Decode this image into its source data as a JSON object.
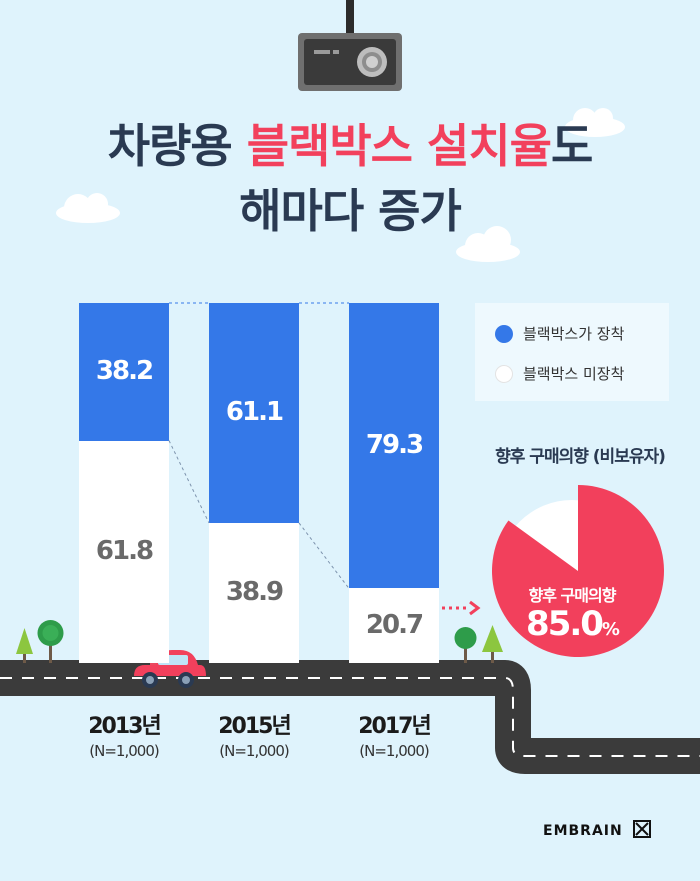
{
  "title": {
    "line1_pre": "차량용 ",
    "line1_accent": "블랙박스 설치율",
    "line1_post": "도",
    "line2": "해마다 증가"
  },
  "legend": {
    "installed": "블랙박스가 장착",
    "not_installed": "블랙박스 미장착"
  },
  "pie": {
    "title": "향후 구매의향 (비보유자)",
    "label": "향후 구매의향",
    "value_text": "85.0",
    "unit": "%"
  },
  "brand": "EMBRAIN",
  "colors": {
    "installed": "#3478e8",
    "not_installed": "#ffffff",
    "pie": "#f2405c",
    "title": "#2a3a52",
    "accent": "#f2405c"
  },
  "chart_data": [
    {
      "type": "bar",
      "stacked": true,
      "categories": [
        "2013년",
        "2015년",
        "2017년"
      ],
      "category_notes": [
        "(N=1,000)",
        "(N=1,000)",
        "(N=1,000)"
      ],
      "series": [
        {
          "name": "블랙박스가 장착",
          "values": [
            38.2,
            61.1,
            79.3
          ]
        },
        {
          "name": "블랙박스 미장착",
          "values": [
            61.8,
            38.9,
            20.7
          ]
        }
      ],
      "value_labels": {
        "installed": [
          "38.2",
          "61.1",
          "79.3"
        ],
        "not_installed": [
          "61.8",
          "38.9",
          "20.7"
        ]
      },
      "ylim": [
        0,
        100
      ],
      "legend_position": "top-right"
    },
    {
      "type": "pie",
      "title": "향후 구매의향 (비보유자)",
      "slices": [
        {
          "name": "향후 구매의향",
          "value": 85.0
        },
        {
          "name": "",
          "value": 15.0
        }
      ]
    }
  ]
}
